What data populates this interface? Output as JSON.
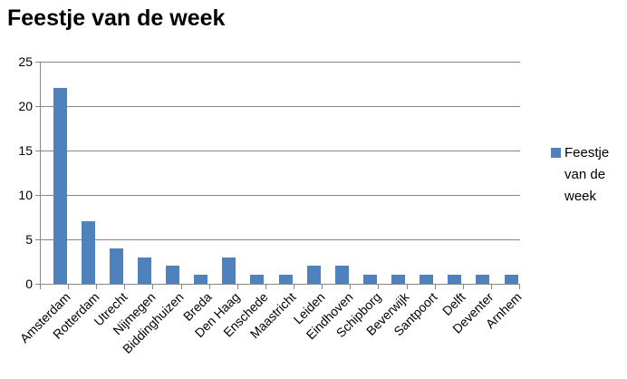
{
  "chart_data": {
    "type": "bar",
    "title": "Feestje van de week",
    "series_name": "Feestje van de week",
    "categories": [
      "Amsterdam",
      "Rotterdam",
      "Utrecht",
      "Nijmegen",
      "Biddinghuizen",
      "Breda",
      "Den Haag",
      "Enschede",
      "Maastricht",
      "Leiden",
      "Eindhoven",
      "Schipborg",
      "Beverwijk",
      "Santpoort",
      "Delft",
      "Deventer",
      "Arnhem"
    ],
    "values": [
      22,
      7,
      4,
      3,
      2,
      1,
      3,
      1,
      1,
      2,
      2,
      1,
      1,
      1,
      1,
      1,
      1
    ],
    "xlabel": "",
    "ylabel": "",
    "ylim": [
      0,
      25
    ],
    "ytick_step": 5,
    "yticks": [
      0,
      5,
      10,
      15,
      20,
      25
    ],
    "grid": true,
    "legend_position": "right",
    "x_label_rotation_deg": 45,
    "bar_color": "#4F81BD",
    "grid_color": "#878787",
    "axis_color": "#878787",
    "text_color": "#000000",
    "background_color": "#FFFFFF"
  }
}
